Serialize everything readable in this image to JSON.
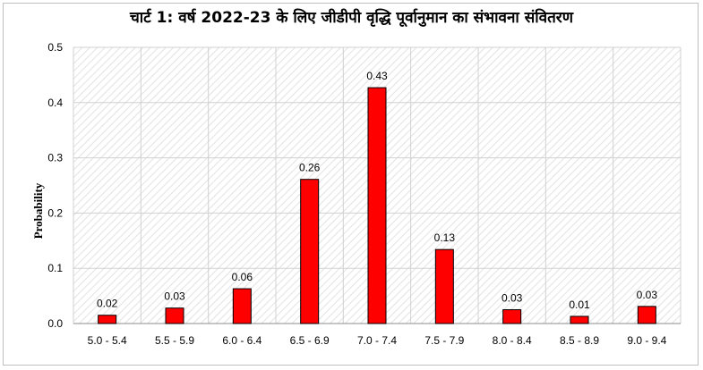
{
  "chart_data": {
    "type": "bar",
    "title": "चार्ट 1: वर्ष 2022-23 के लिए जीडीपी वृद्धि पूर्वानुमान का संभावना संवितरण",
    "xlabel": "",
    "ylabel": "Probability",
    "categories": [
      "5.0 - 5.4",
      "5.5 - 5.9",
      "6.0 - 6.4",
      "6.5 - 6.9",
      "7.0 - 7.4",
      "7.5 - 7.9",
      "8.0 - 8.4",
      "8.5 - 8.9",
      "9.0 - 9.4"
    ],
    "values": [
      0.015,
      0.028,
      0.063,
      0.261,
      0.427,
      0.134,
      0.025,
      0.013,
      0.031
    ],
    "data_labels": [
      "0.02",
      "0.03",
      "0.06",
      "0.26",
      "0.43",
      "0.13",
      "0.03",
      "0.01",
      "0.03"
    ],
    "ylim": [
      0,
      0.5
    ],
    "yticks": [
      "0.0",
      "0.1",
      "0.2",
      "0.3",
      "0.4",
      "0.5"
    ],
    "ytick_values": [
      0,
      0.1,
      0.2,
      0.3,
      0.4,
      0.5
    ],
    "grid": true,
    "bar_color": "#ff0000",
    "bar_edge_color": "#000000"
  }
}
